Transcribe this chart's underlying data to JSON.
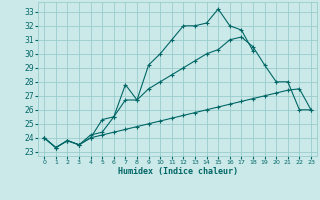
{
  "xlabel": "Humidex (Indice chaleur)",
  "bg_color": "#cce9e9",
  "grid_color": "#99cccc",
  "line_color": "#006666",
  "xlim": [
    -0.5,
    23.5
  ],
  "ylim": [
    22.7,
    33.7
  ],
  "xticks": [
    0,
    1,
    2,
    3,
    4,
    5,
    6,
    7,
    8,
    9,
    10,
    11,
    12,
    13,
    14,
    15,
    16,
    17,
    18,
    19,
    20,
    21,
    22,
    23
  ],
  "yticks": [
    23,
    24,
    25,
    26,
    27,
    28,
    29,
    30,
    31,
    32,
    33
  ],
  "line1_y": [
    24.0,
    23.3,
    23.8,
    23.5,
    24.0,
    25.3,
    25.5,
    27.8,
    26.7,
    29.2,
    30.0,
    31.0,
    32.0,
    32.0,
    32.2,
    33.2,
    32.0,
    31.7,
    30.2,
    null,
    null,
    null,
    null,
    null
  ],
  "line2_y": [
    24.0,
    23.3,
    23.8,
    23.5,
    24.2,
    24.4,
    25.5,
    26.7,
    26.7,
    27.5,
    28.0,
    28.5,
    29.0,
    29.5,
    30.0,
    30.3,
    31.0,
    31.2,
    30.5,
    29.2,
    28.0,
    28.0,
    26.0,
    26.0
  ],
  "line3_y": [
    24.0,
    23.3,
    23.8,
    23.5,
    24.0,
    24.2,
    24.4,
    24.6,
    24.8,
    25.0,
    25.2,
    25.4,
    25.6,
    25.8,
    26.0,
    26.2,
    26.4,
    26.6,
    26.8,
    27.0,
    27.2,
    27.4,
    27.5,
    26.0
  ]
}
